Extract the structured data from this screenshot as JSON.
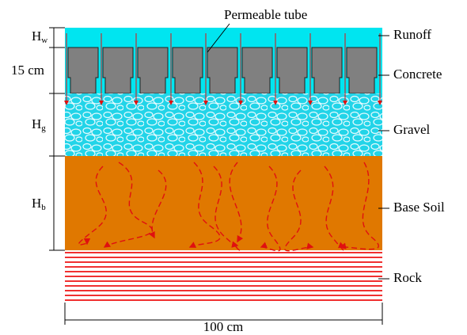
{
  "labels": {
    "tube": "Permeable tube",
    "hw": {
      "symbol": "H",
      "subscript": "w"
    },
    "concrete_depth": "15 cm",
    "hg": {
      "symbol": "H",
      "subscript": "g"
    },
    "hb": {
      "symbol": "H",
      "subscript": "b"
    },
    "width": "100 cm"
  },
  "layers": [
    "Runoff",
    "Concrete",
    "Gravel",
    "Base Soil",
    "Rock"
  ]
}
